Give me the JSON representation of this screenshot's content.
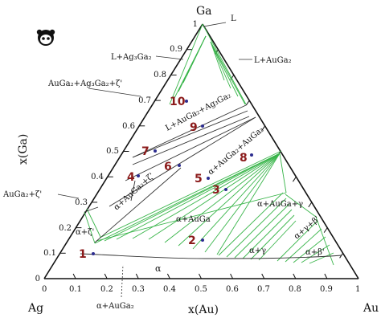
{
  "vertices": {
    "top": "Ga",
    "left": "Ag",
    "right": "Au"
  },
  "axes": {
    "bottom_label": "x(Au)",
    "left_label": "x(Ga)",
    "bottom_ticks": [
      "0",
      "0.1",
      "0.2",
      "0.3",
      "0.4",
      "0.5",
      "0.6",
      "0.7",
      "0.8",
      "0.9",
      "1"
    ],
    "left_ticks": [
      "0",
      "0.1",
      "0.2",
      "0.3",
      "0.4",
      "0.5",
      "0.6",
      "0.7",
      "0.8",
      "0.9",
      "1"
    ]
  },
  "phase_labels": {
    "L": "L",
    "l_ag3ga2": "L+Ag₃Ga₂",
    "l_auga2": "L+AuGa₂",
    "auga2_ag3ga2_zeta": "AuGa₂+Ag₃Ga₂+ζ'",
    "l_auga2_ag3ga2": "L+AuGa₂+Ag₃Ga₂",
    "alpha_auga2_auga2": "α+AuGa₂+AuGa₂",
    "alpha_auga2_zeta": "α+AuGa₂+ζ'",
    "auga2_zeta": "AuGa₂+ζ'",
    "alpha_zeta": "α+ζ'",
    "alpha_auga": "α+AuGa",
    "alpha_auga_gamma": "α+AuGa+γ",
    "alpha_gamma": "α+γ",
    "alpha_gamma_beta": "α+γ+β'",
    "alpha_beta": "α+β'",
    "alpha": "α",
    "alpha_auga2_bottom": "α+AuGa₂"
  },
  "samples": [
    "1",
    "2",
    "3",
    "4",
    "5",
    "6",
    "7",
    "8",
    "9",
    "10"
  ],
  "colors": {
    "tie_line": "#39b54a",
    "boundary": "#333333",
    "number": "#8b1a1a",
    "dot": "#2c2c8f"
  },
  "icon": "panda-logo-icon"
}
